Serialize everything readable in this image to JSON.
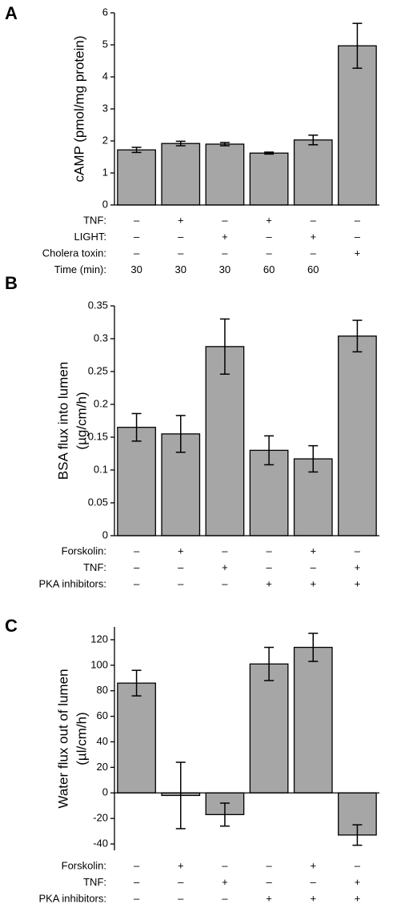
{
  "chart_data": [
    {
      "type": "bar",
      "panel_label": "A",
      "ylabel": [
        "cAMP (pmol/mg protein)"
      ],
      "values": [
        1.72,
        1.92,
        1.9,
        1.62,
        2.03,
        4.97
      ],
      "errors": [
        0.08,
        0.07,
        0.05,
        0.03,
        0.15,
        0.7
      ],
      "color": "#a6a6a6",
      "ylim": [
        0,
        6
      ],
      "yticks": [
        0,
        1,
        2,
        3,
        4,
        5,
        6
      ],
      "conditions": [
        {
          "label": "TNF:",
          "values": [
            "–",
            "+",
            "–",
            "+",
            "–",
            "–"
          ]
        },
        {
          "label": "LIGHT:",
          "values": [
            "–",
            "–",
            "+",
            "–",
            "+",
            "–"
          ]
        },
        {
          "label": "Cholera toxin:",
          "values": [
            "–",
            "–",
            "–",
            "–",
            "–",
            "+"
          ]
        },
        {
          "label": "Time (min):",
          "values": [
            "30",
            "30",
            "30",
            "60",
            "60",
            null
          ]
        }
      ]
    },
    {
      "type": "bar",
      "panel_label": "B",
      "ylabel": [
        "BSA flux into lumen",
        "(µg/cm/h)"
      ],
      "values": [
        0.165,
        0.155,
        0.288,
        0.13,
        0.117,
        0.304
      ],
      "errors": [
        0.021,
        0.028,
        0.042,
        0.022,
        0.02,
        0.024
      ],
      "color": "#a6a6a6",
      "ylim": [
        0,
        0.35
      ],
      "yticks": [
        0,
        0.05,
        0.1,
        0.15,
        0.2,
        0.25,
        0.3,
        0.35
      ],
      "conditions": [
        {
          "label": "Forskolin:",
          "values": [
            "–",
            "+",
            "–",
            "–",
            "+",
            "–"
          ]
        },
        {
          "label": "TNF:",
          "values": [
            "–",
            "–",
            "+",
            "–",
            "–",
            "+"
          ]
        },
        {
          "label": "PKA inhibitors:",
          "values": [
            "–",
            "–",
            "–",
            "+",
            "+",
            "+"
          ]
        }
      ]
    },
    {
      "type": "bar",
      "panel_label": "C",
      "ylabel": [
        "Water flux out of lumen",
        "(µl/cm/h)"
      ],
      "values": [
        86,
        -2,
        -17,
        101,
        114,
        -33
      ],
      "errors": [
        10,
        26,
        9,
        13,
        11,
        8
      ],
      "color": "#a6a6a6",
      "ylim": [
        -45,
        130
      ],
      "yticks": [
        -40,
        -20,
        0,
        20,
        40,
        60,
        80,
        100,
        120
      ],
      "conditions": [
        {
          "label": "Forskolin:",
          "values": [
            "–",
            "+",
            "–",
            "–",
            "+",
            "–"
          ]
        },
        {
          "label": "TNF:",
          "values": [
            "–",
            "–",
            "+",
            "–",
            "–",
            "+"
          ]
        },
        {
          "label": "PKA inhibitors:",
          "values": [
            "–",
            "–",
            "–",
            "+",
            "+",
            "+"
          ]
        }
      ]
    }
  ]
}
